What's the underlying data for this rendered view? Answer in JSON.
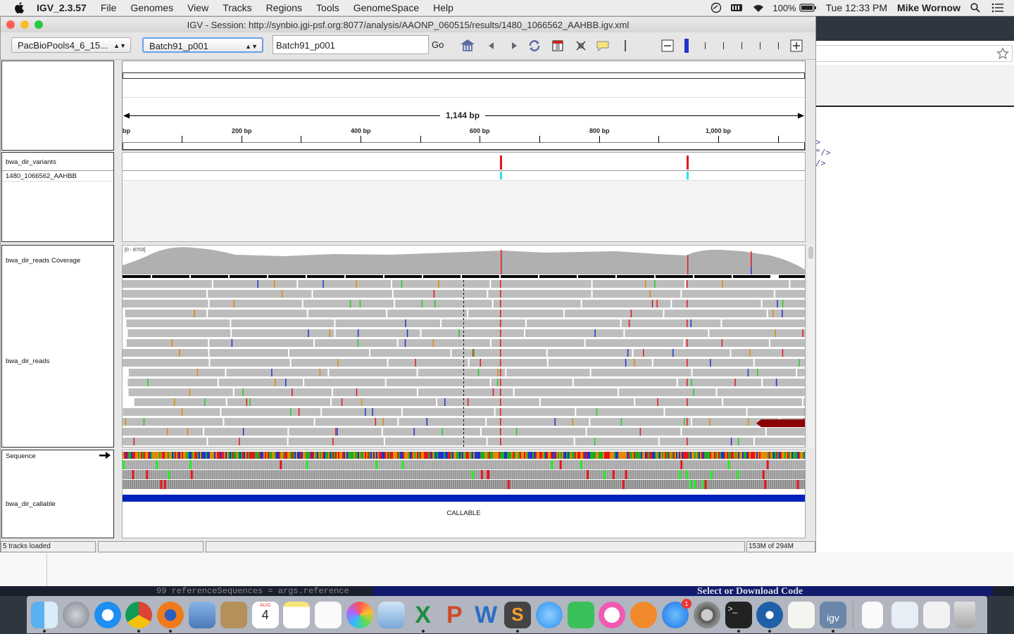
{
  "menubar": {
    "app_name": "IGV_2.3.57",
    "items": [
      "File",
      "Genomes",
      "View",
      "Tracks",
      "Regions",
      "Tools",
      "GenomeSpace",
      "Help"
    ],
    "battery": "100%",
    "clock": "Tue 12:33 PM",
    "user": "Mike Wornow"
  },
  "window": {
    "title": "IGV - Session: http://synbio.jgi-psf.org:8077/analysis/AAONP_060515/results/1480_1066562_AAHBB.igv.xml"
  },
  "toolbar": {
    "genome_select": "PacBioPools4_6_15...",
    "chrom_select": "Batch91_p001",
    "locus_value": "Batch91_p001",
    "go_label": "Go"
  },
  "ruler": {
    "span_label": "1,144 bp",
    "ticks": [
      "bp",
      "200 bp",
      "400 bp",
      "600 bp",
      "800 bp",
      "1,000 bp"
    ]
  },
  "tracks": {
    "variants_name": "bwa_dir_variants",
    "sample_name": "1480_1066562_AAHBB",
    "coverage_name": "bwa_dir_reads Coverage",
    "coverage_range": "[0 - 8703]",
    "reads_name": "bwa_dir_reads",
    "sequence_name": "Sequence",
    "callable_name": "bwa_dir_callable",
    "callable_label": "CALLABLE"
  },
  "status": {
    "tracks_loaded": "5 tracks loaded",
    "memory": "153M of 294M"
  },
  "background": {
    "code_lines": [
      ">",
      "\"/>",
      "/>"
    ],
    "strip_code": "99   referenceSequences = args.reference",
    "strip_banner": "Select or Download Code"
  },
  "dock": {
    "icons": [
      "finder-icon",
      "launchpad-icon",
      "safari-icon",
      "chrome-icon",
      "firefox-icon",
      "mail-icon",
      "contacts-icon",
      "calendar-icon",
      "notes-icon",
      "reminders-icon",
      "photos-icon",
      "preview-icon",
      "excel-icon",
      "powerpoint-icon",
      "word-icon",
      "sublime-icon",
      "messages-icon",
      "facetime-icon",
      "itunes-icon",
      "ibooks-icon",
      "appstore-icon",
      "system-prefs-icon",
      "terminal-icon",
      "sourcetree-icon",
      "textedit-icon",
      "igv-icon",
      "document-icon",
      "downloads-icon",
      "chrome-doc-icon",
      "trash-icon"
    ],
    "calendar_month": "AUG",
    "calendar_day": "4",
    "igv_label": "igv",
    "appstore_badge": "1"
  },
  "colors": {
    "variant_red": "#e8141e",
    "variant_cyan": "#33dde8",
    "read_gray": "#bdbdbd",
    "coverage_gray": "#b0b0b0",
    "callable_blue": "#0022bb"
  }
}
